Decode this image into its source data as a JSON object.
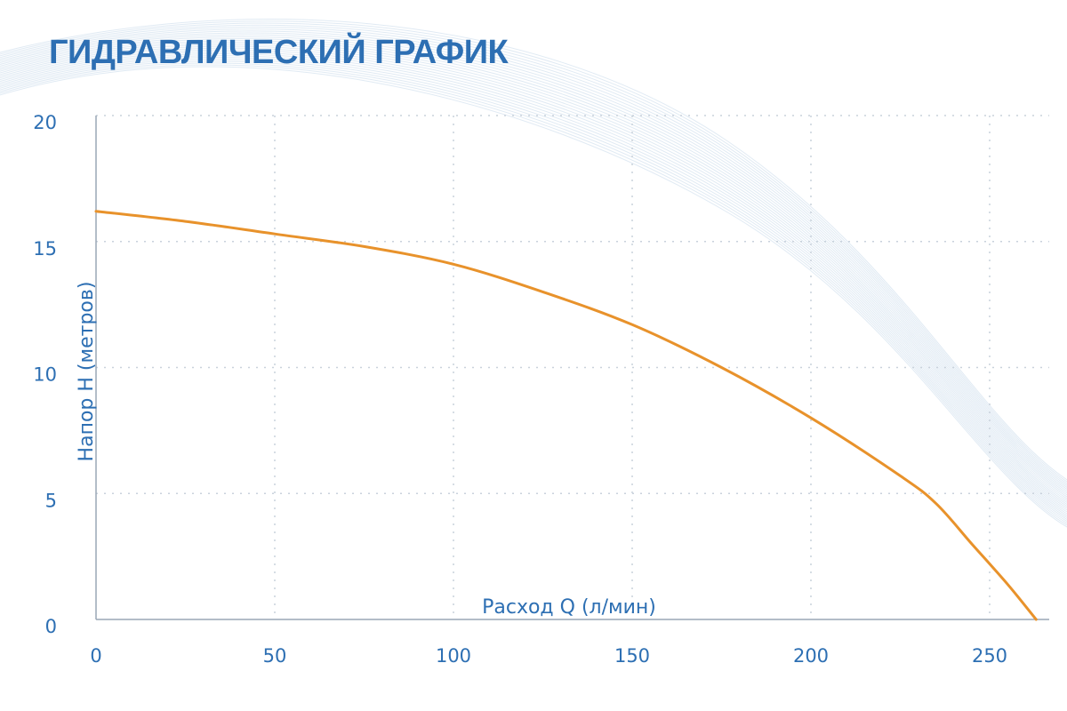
{
  "title": "ГИДРАВЛИЧЕСКИЙ ГРАФИК",
  "colors": {
    "title": "#2d6fb3",
    "axis_text": "#2d6fb3",
    "curve": "#e8922b",
    "grid": "#c9d2dc",
    "axis": "#9aa7b5",
    "background_waves": "#c6d8ea"
  },
  "chart_data": {
    "type": "line",
    "title": "ГИДРАВЛИЧЕСКИЙ ГРАФИК",
    "xlabel": "Расход Q (л/мин)",
    "ylabel": "Напор H (метров)",
    "xlim": [
      0,
      265
    ],
    "ylim": [
      0,
      20
    ],
    "xticks": [
      0,
      50,
      100,
      150,
      200,
      250
    ],
    "yticks": [
      0,
      5,
      10,
      15,
      20
    ],
    "grid": true,
    "legend": "none",
    "series": [
      {
        "x": [
          0,
          25,
          50,
          75,
          100,
          125,
          150,
          175,
          200,
          225,
          235,
          245,
          255,
          263
        ],
        "y": [
          16.2,
          15.8,
          15.3,
          14.8,
          14.1,
          13.0,
          11.7,
          10.0,
          8.0,
          5.7,
          4.6,
          3.0,
          1.4,
          0
        ]
      }
    ]
  }
}
